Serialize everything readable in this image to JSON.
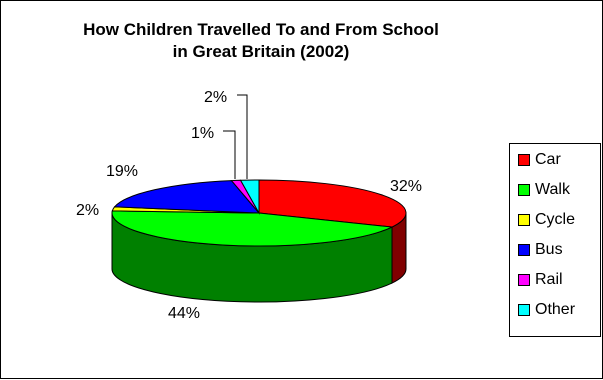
{
  "chart_data": {
    "type": "pie",
    "title_line1": "How Children Travelled To and From School",
    "title_line2": "in Great Britain (2002)",
    "categories": [
      "Car",
      "Walk",
      "Cycle",
      "Bus",
      "Rail",
      "Other"
    ],
    "values": [
      32,
      44,
      2,
      19,
      1,
      2
    ],
    "labels": [
      "32%",
      "44%",
      "2%",
      "19%",
      "1%",
      "2%"
    ],
    "colors": [
      "#ff0000",
      "#00ff00",
      "#ffff00",
      "#0000ff",
      "#ff00ff",
      "#00ffff"
    ],
    "side_colors": [
      "#800000",
      "#008000",
      "#808000",
      "#000080",
      "#800080",
      "#008080"
    ],
    "legend_placement": "right",
    "style": "3d-pie"
  }
}
